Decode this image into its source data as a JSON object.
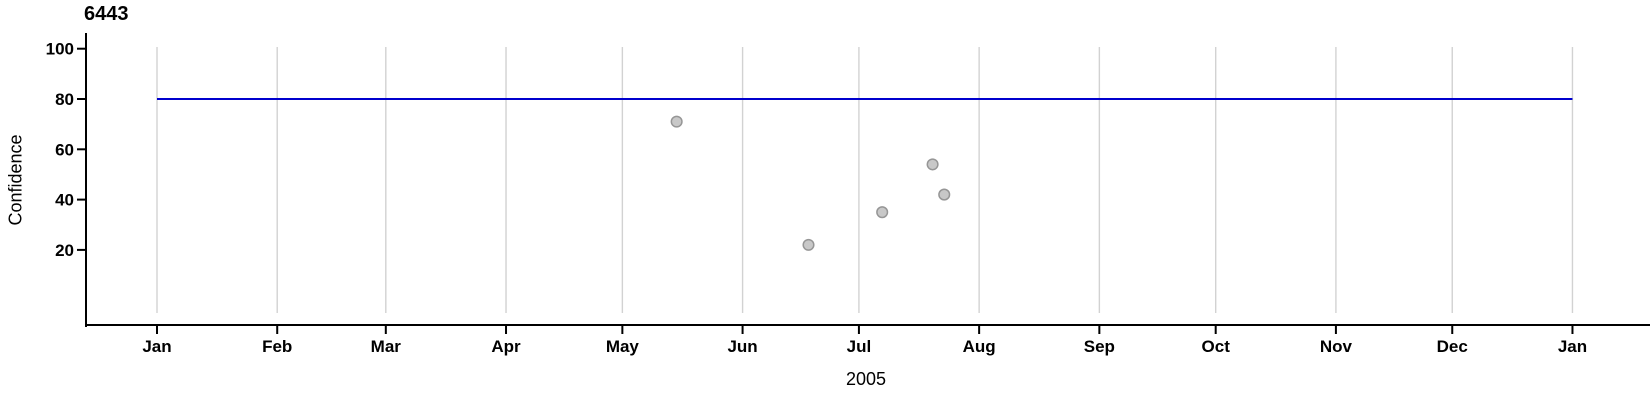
{
  "figure": {
    "title": "6443",
    "x_axis_title": "2005",
    "y_axis_title": "Confidence"
  },
  "colors": {
    "background": "#ffffff",
    "axis_line": "#000000",
    "gridline": "#d2d2d2",
    "tick_text": "#000000",
    "threshold_line": "#0000cd",
    "point_fill": "#c8c8c8",
    "point_stroke": "#969696"
  },
  "chart_data": {
    "type": "scatter",
    "title": "6443",
    "xlabel": "2005",
    "ylabel": "Confidence",
    "x_axis": {
      "tick_labels": [
        "Jan",
        "Feb",
        "Mar",
        "Apr",
        "May",
        "Jun",
        "Jul",
        "Aug",
        "Sep",
        "Oct",
        "Nov",
        "Dec",
        "Jan"
      ],
      "tick_day_offsets": [
        0,
        31,
        59,
        90,
        120,
        151,
        181,
        212,
        243,
        273,
        304,
        334,
        365
      ],
      "range": "2005-01-01 to 2006-01-01",
      "grid": "vertical gridlines at each month"
    },
    "y_axis": {
      "tick_values": [
        100,
        80,
        60,
        40,
        20
      ],
      "visible_range": [
        0,
        100
      ],
      "grid": "none"
    },
    "legend": "none",
    "series": [
      {
        "name": "confidence-points",
        "type": "scatter",
        "points": [
          {
            "date": "2005-05-15",
            "day_of_year": 134,
            "value": 71
          },
          {
            "date": "2005-06-18",
            "day_of_year": 168,
            "value": 22
          },
          {
            "date": "2005-07-07",
            "day_of_year": 187,
            "value": 35
          },
          {
            "date": "2005-07-20",
            "day_of_year": 200,
            "value": 54
          },
          {
            "date": "2005-07-23",
            "day_of_year": 203,
            "value": 42
          }
        ]
      },
      {
        "name": "threshold-line",
        "type": "line",
        "y": 80,
        "x_start_day": 0,
        "x_end_day": 365
      }
    ]
  }
}
